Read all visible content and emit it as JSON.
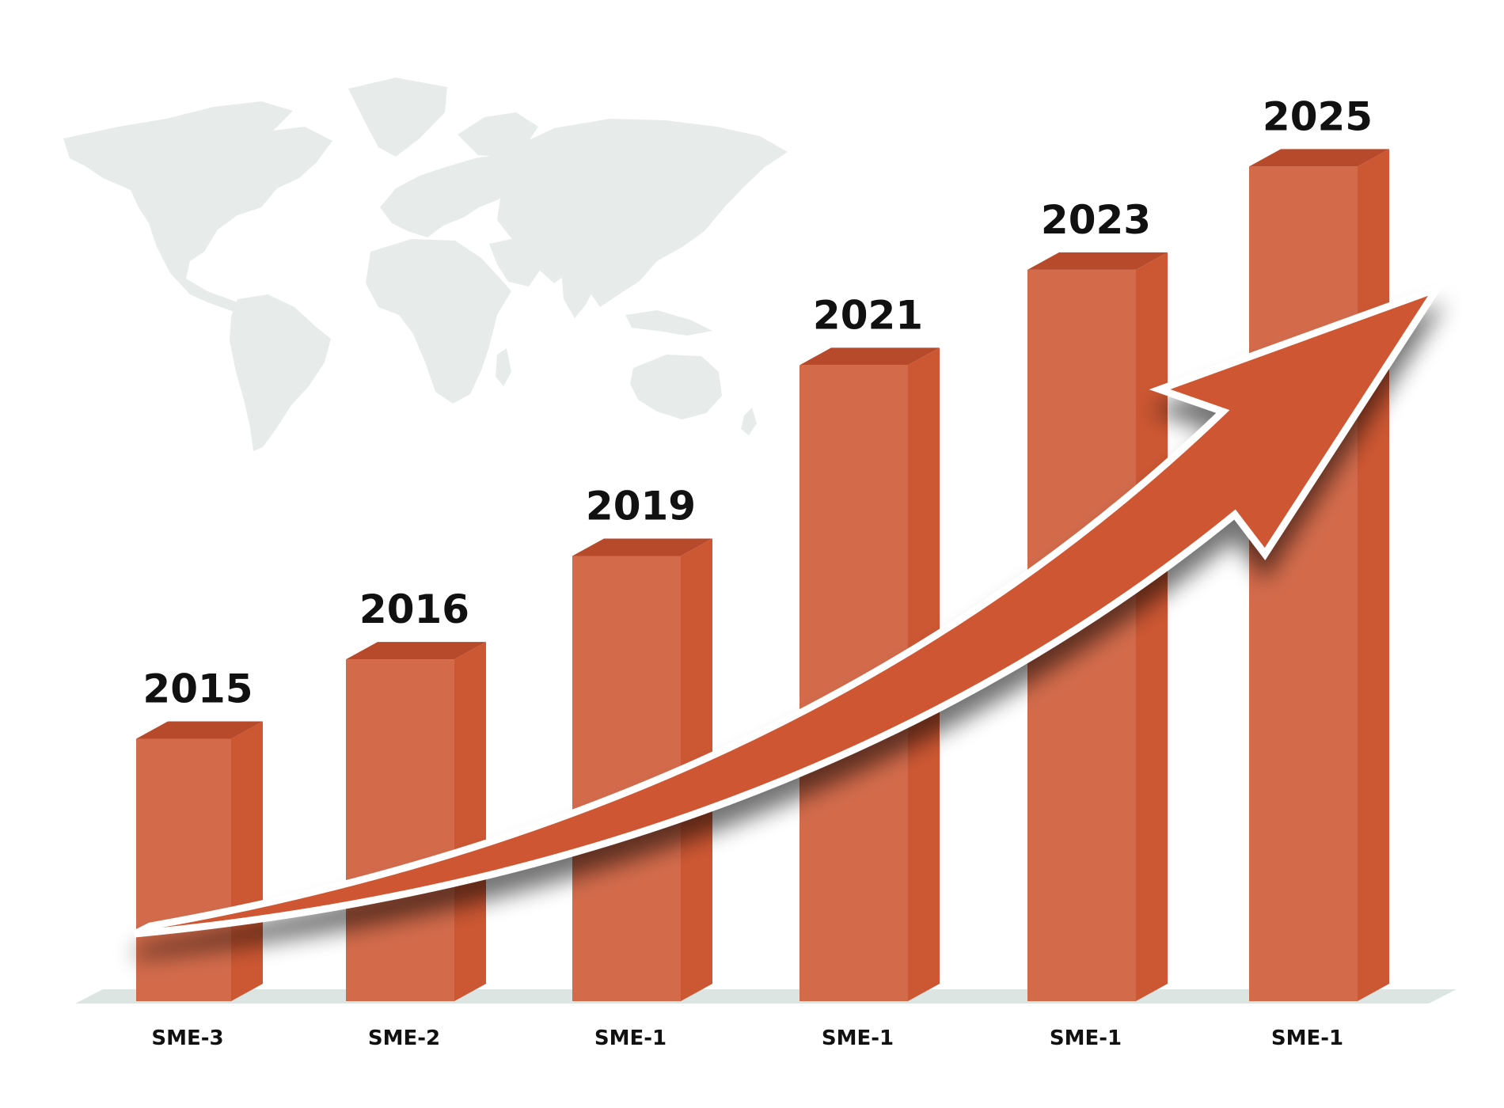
{
  "chart_data": {
    "type": "bar",
    "title": "",
    "xlabel": "",
    "ylabel": "",
    "categories": [
      "SME-3",
      "SME-2",
      "SME-1",
      "SME-1",
      "SME-1",
      "SME-1"
    ],
    "data_labels": [
      "2015",
      "2016",
      "2019",
      "2021",
      "2023",
      "2025"
    ],
    "values": [
      33,
      43,
      56,
      80,
      92,
      105
    ],
    "ylim": [
      0,
      112
    ],
    "grid": false,
    "legend": "none",
    "decorations": [
      "world-map-background",
      "upward-trend-arrow"
    ]
  },
  "colors": {
    "bar_front": "#D36B4B",
    "bar_side": "#CC5733",
    "bar_top": "#B84A2C",
    "arrow": "#CF5631",
    "arrow_outline": "#FFFFFF",
    "map": "#E7ECEA",
    "floor": "#DDE5E2",
    "text": "#111111"
  }
}
